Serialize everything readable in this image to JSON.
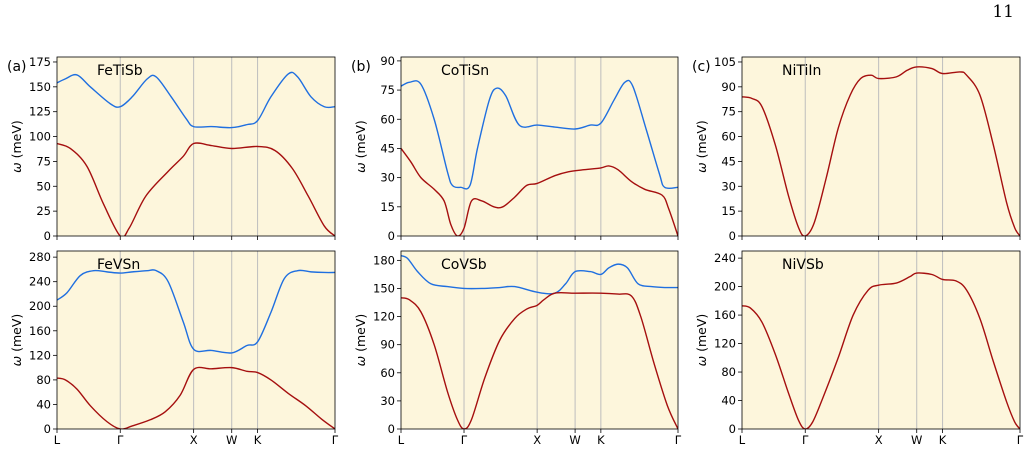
{
  "page_number": "11",
  "colors": {
    "background": "#fdf6dc",
    "optical_branch": "#1f6fe0",
    "acoustic_branch": "#a50f0f",
    "kpath_line": "#bdbdbd"
  },
  "q_path": [
    "L",
    "Γ",
    "X",
    "W",
    "K",
    "Γ"
  ],
  "y_axis_label": "ω (meV)",
  "chart_data": [
    {
      "type": "line",
      "panel": "(a)",
      "title": "FeTiSb",
      "ylabel": "ω (meV)",
      "ylim": [
        0,
        180
      ],
      "yticks": [
        0,
        25,
        50,
        75,
        100,
        125,
        150,
        175
      ],
      "x_ticks": [
        "L",
        "Γ",
        "X",
        "W",
        "K",
        "Γ"
      ],
      "series": [
        {
          "values": [
            [
              0,
              154
            ],
            [
              0.05,
              158
            ],
            [
              0.12,
              162
            ],
            [
              0.2,
              150
            ],
            [
              0.32,
              133
            ],
            [
              0.38,
              130
            ],
            [
              0.46,
              140
            ],
            [
              0.56,
              158
            ],
            [
              0.62,
              160
            ],
            [
              0.72,
              140
            ],
            [
              0.82,
              118
            ],
            [
              0.87,
              110
            ],
            [
              1.0,
              110
            ],
            [
              1.15,
              109
            ],
            [
              1.25,
              112
            ],
            [
              1.32,
              116
            ],
            [
              1.42,
              140
            ],
            [
              1.55,
              163
            ],
            [
              1.62,
              160
            ],
            [
              1.72,
              140
            ],
            [
              1.82,
              130
            ],
            [
              1.9,
              130
            ]
          ]
        },
        {
          "values": [
            [
              0,
              93
            ],
            [
              0.08,
              88
            ],
            [
              0.18,
              70
            ],
            [
              0.28,
              32
            ],
            [
              0.38,
              0
            ],
            [
              0.44,
              8
            ],
            [
              0.55,
              40
            ],
            [
              0.7,
              65
            ],
            [
              0.8,
              80
            ],
            [
              0.87,
              93
            ],
            [
              1.0,
              91
            ],
            [
              1.15,
              88
            ],
            [
              1.32,
              90
            ],
            [
              1.45,
              86
            ],
            [
              1.58,
              68
            ],
            [
              1.7,
              40
            ],
            [
              1.82,
              10
            ],
            [
              1.9,
              0
            ]
          ]
        }
      ]
    },
    {
      "type": "line",
      "panel": "(b)",
      "title": "CoTiSn",
      "ylabel": "ω (meV)",
      "ylim": [
        0,
        92
      ],
      "yticks": [
        0,
        15,
        30,
        45,
        60,
        75,
        90
      ],
      "x_ticks": [
        "L",
        "Γ",
        "X",
        "W",
        "K",
        "Γ"
      ],
      "series": [
        {
          "values": [
            [
              0,
              77
            ],
            [
              0.05,
              79
            ],
            [
              0.12,
              78
            ],
            [
              0.2,
              60
            ],
            [
              0.28,
              33
            ],
            [
              0.31,
              26
            ],
            [
              0.36,
              25
            ],
            [
              0.42,
              26
            ],
            [
              0.47,
              45
            ],
            [
              0.55,
              70
            ],
            [
              0.6,
              76
            ],
            [
              0.66,
              72
            ],
            [
              0.75,
              57
            ],
            [
              0.87,
              57
            ],
            [
              1.0,
              56
            ],
            [
              1.15,
              55
            ],
            [
              1.25,
              57
            ],
            [
              1.32,
              58
            ],
            [
              1.42,
              70
            ],
            [
              1.5,
              79
            ],
            [
              1.56,
              77
            ],
            [
              1.66,
              55
            ],
            [
              1.76,
              32
            ],
            [
              1.8,
              25
            ],
            [
              1.9,
              25
            ]
          ]
        },
        {
          "values": [
            [
              0,
              45
            ],
            [
              0.06,
              38
            ],
            [
              0.12,
              30
            ],
            [
              0.2,
              24
            ],
            [
              0.26,
              18
            ],
            [
              0.3,
              6
            ],
            [
              0.34,
              0
            ],
            [
              0.38,
              4
            ],
            [
              0.43,
              18
            ],
            [
              0.5,
              18
            ],
            [
              0.58,
              15
            ],
            [
              0.64,
              15
            ],
            [
              0.72,
              20
            ],
            [
              0.8,
              26
            ],
            [
              0.87,
              27
            ],
            [
              1.0,
              31
            ],
            [
              1.1,
              33
            ],
            [
              1.2,
              34
            ],
            [
              1.32,
              35
            ],
            [
              1.38,
              36
            ],
            [
              1.45,
              34
            ],
            [
              1.55,
              28
            ],
            [
              1.65,
              24
            ],
            [
              1.78,
              21
            ],
            [
              1.83,
              14
            ],
            [
              1.9,
              0
            ]
          ]
        }
      ]
    },
    {
      "type": "line",
      "panel": "(c)",
      "title": "NiTiIn",
      "ylabel": "ω (meV)",
      "ylim": [
        0,
        108
      ],
      "yticks": [
        0,
        15,
        30,
        45,
        60,
        75,
        90,
        105
      ],
      "x_ticks": [
        "L",
        "Γ",
        "X",
        "W",
        "K",
        "Γ"
      ],
      "series": [
        {
          "values": [
            [
              0,
              84
            ],
            [
              0.06,
              83
            ],
            [
              0.12,
              78
            ],
            [
              0.2,
              55
            ],
            [
              0.28,
              24
            ],
            [
              0.34,
              5
            ],
            [
              0.38,
              0
            ],
            [
              0.44,
              8
            ],
            [
              0.52,
              35
            ],
            [
              0.6,
              65
            ],
            [
              0.68,
              85
            ],
            [
              0.75,
              95
            ],
            [
              0.82,
              97
            ],
            [
              0.87,
              95
            ],
            [
              1.0,
              96
            ],
            [
              1.08,
              100
            ],
            [
              1.15,
              102
            ],
            [
              1.25,
              101
            ],
            [
              1.32,
              98
            ],
            [
              1.45,
              99
            ],
            [
              1.5,
              97
            ],
            [
              1.6,
              85
            ],
            [
              1.7,
              55
            ],
            [
              1.8,
              20
            ],
            [
              1.86,
              5
            ],
            [
              1.9,
              0
            ]
          ]
        }
      ]
    },
    {
      "type": "line",
      "panel": "(a)",
      "title": "FeVSn",
      "ylabel": "ω (meV)",
      "ylim": [
        0,
        290
      ],
      "yticks": [
        0,
        40,
        80,
        120,
        160,
        200,
        240,
        280
      ],
      "x_ticks": [
        "L",
        "Γ",
        "X",
        "W",
        "K",
        "Γ"
      ],
      "series": [
        {
          "values": [
            [
              0,
              210
            ],
            [
              0.06,
              222
            ],
            [
              0.14,
              250
            ],
            [
              0.22,
              258
            ],
            [
              0.3,
              256
            ],
            [
              0.38,
              254
            ],
            [
              0.46,
              256
            ],
            [
              0.56,
              258
            ],
            [
              0.62,
              258
            ],
            [
              0.7,
              240
            ],
            [
              0.8,
              175
            ],
            [
              0.87,
              130
            ],
            [
              1.0,
              128
            ],
            [
              1.15,
              124
            ],
            [
              1.25,
              136
            ],
            [
              1.32,
              142
            ],
            [
              1.42,
              190
            ],
            [
              1.52,
              245
            ],
            [
              1.62,
              258
            ],
            [
              1.72,
              256
            ],
            [
              1.82,
              255
            ],
            [
              1.9,
              255
            ]
          ]
        },
        {
          "values": [
            [
              0,
              83
            ],
            [
              0.05,
              80
            ],
            [
              0.12,
              65
            ],
            [
              0.2,
              38
            ],
            [
              0.3,
              12
            ],
            [
              0.38,
              0
            ],
            [
              0.46,
              5
            ],
            [
              0.58,
              15
            ],
            [
              0.68,
              28
            ],
            [
              0.78,
              55
            ],
            [
              0.87,
              97
            ],
            [
              1.0,
              98
            ],
            [
              1.15,
              100
            ],
            [
              1.25,
              94
            ],
            [
              1.32,
              92
            ],
            [
              1.42,
              80
            ],
            [
              1.55,
              58
            ],
            [
              1.68,
              38
            ],
            [
              1.8,
              16
            ],
            [
              1.9,
              0
            ]
          ]
        }
      ]
    },
    {
      "type": "line",
      "panel": "(b)",
      "title": "CoVSb",
      "ylabel": "ω (meV)",
      "ylim": [
        0,
        190
      ],
      "yticks": [
        0,
        30,
        60,
        90,
        120,
        150,
        180
      ],
      "x_ticks": [
        "L",
        "Γ",
        "X",
        "W",
        "K",
        "Γ"
      ],
      "series": [
        {
          "values": [
            [
              0,
              185
            ],
            [
              0.04,
              182
            ],
            [
              0.1,
              168
            ],
            [
              0.18,
              155
            ],
            [
              0.28,
              152
            ],
            [
              0.38,
              150
            ],
            [
              0.5,
              150
            ],
            [
              0.62,
              151
            ],
            [
              0.72,
              152
            ],
            [
              0.87,
              146
            ],
            [
              1.0,
              145
            ],
            [
              1.08,
              155
            ],
            [
              1.15,
              168
            ],
            [
              1.25,
              168
            ],
            [
              1.32,
              165
            ],
            [
              1.38,
              172
            ],
            [
              1.45,
              176
            ],
            [
              1.52,
              172
            ],
            [
              1.6,
              155
            ],
            [
              1.7,
              152
            ],
            [
              1.8,
              151
            ],
            [
              1.9,
              151
            ]
          ]
        },
        {
          "values": [
            [
              0,
              140
            ],
            [
              0.05,
              138
            ],
            [
              0.12,
              125
            ],
            [
              0.2,
              90
            ],
            [
              0.28,
              40
            ],
            [
              0.34,
              10
            ],
            [
              0.38,
              0
            ],
            [
              0.43,
              10
            ],
            [
              0.52,
              55
            ],
            [
              0.62,
              95
            ],
            [
              0.72,
              118
            ],
            [
              0.8,
              128
            ],
            [
              0.87,
              132
            ],
            [
              0.92,
              138
            ],
            [
              1.0,
              145
            ],
            [
              1.15,
              145
            ],
            [
              1.32,
              145
            ],
            [
              1.45,
              144
            ],
            [
              1.55,
              142
            ],
            [
              1.62,
              120
            ],
            [
              1.72,
              70
            ],
            [
              1.82,
              25
            ],
            [
              1.9,
              0
            ]
          ]
        }
      ]
    },
    {
      "type": "line",
      "panel": "(c)",
      "title": "NiVSb",
      "ylabel": "ω (meV)",
      "ylim": [
        0,
        250
      ],
      "yticks": [
        0,
        40,
        80,
        120,
        160,
        200,
        240
      ],
      "x_ticks": [
        "L",
        "Γ",
        "X",
        "W",
        "K",
        "Γ"
      ],
      "series": [
        {
          "values": [
            [
              0,
              173
            ],
            [
              0.05,
              170
            ],
            [
              0.12,
              150
            ],
            [
              0.2,
              105
            ],
            [
              0.28,
              50
            ],
            [
              0.34,
              12
            ],
            [
              0.38,
              0
            ],
            [
              0.43,
              10
            ],
            [
              0.5,
              45
            ],
            [
              0.6,
              100
            ],
            [
              0.7,
              160
            ],
            [
              0.8,
              195
            ],
            [
              0.87,
              202
            ],
            [
              1.0,
              205
            ],
            [
              1.1,
              214
            ],
            [
              1.15,
              219
            ],
            [
              1.25,
              217
            ],
            [
              1.32,
              210
            ],
            [
              1.42,
              208
            ],
            [
              1.5,
              195
            ],
            [
              1.6,
              155
            ],
            [
              1.7,
              95
            ],
            [
              1.8,
              38
            ],
            [
              1.86,
              10
            ],
            [
              1.9,
              0
            ]
          ]
        }
      ]
    }
  ]
}
